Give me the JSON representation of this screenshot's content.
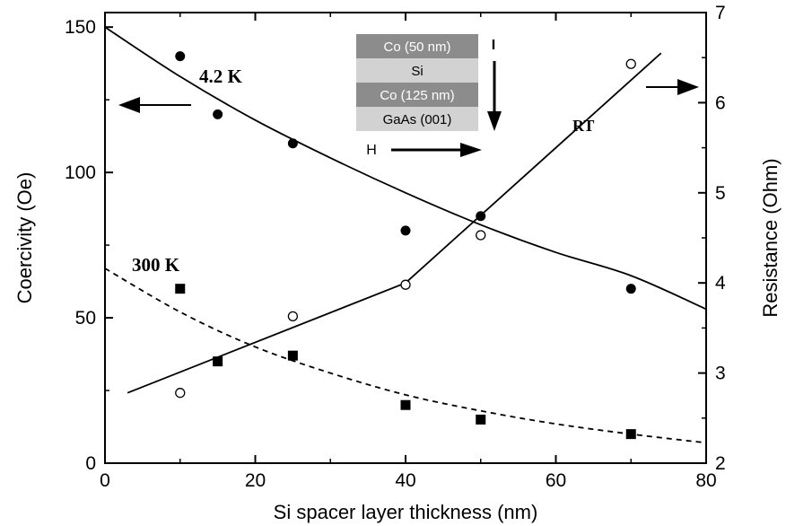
{
  "chart_data": {
    "type": "scatter",
    "xlabel": "Si spacer layer thickness (nm)",
    "ylabel_left": "Coercivity (Oe)",
    "ylabel_right": "Resistance (Ohm)",
    "xlim": [
      0,
      80
    ],
    "ylim_left": [
      0,
      155
    ],
    "ylim_right": [
      2,
      7
    ],
    "x_ticks": [
      0,
      20,
      40,
      60,
      80
    ],
    "y_left_ticks": [
      0,
      50,
      100,
      150
    ],
    "y_right_ticks": [
      2,
      3,
      4,
      5,
      6,
      7
    ],
    "grid": false,
    "series": [
      {
        "name": "4.2 K",
        "axis": "left",
        "marker": "filled-circle",
        "points": [
          [
            10,
            140
          ],
          [
            15,
            120
          ],
          [
            25,
            110
          ],
          [
            40,
            80
          ],
          [
            50,
            85
          ],
          [
            70,
            60
          ]
        ],
        "fit": "solid",
        "fit_curve": [
          [
            0,
            150
          ],
          [
            10,
            133
          ],
          [
            20,
            118
          ],
          [
            30,
            105
          ],
          [
            40,
            93
          ],
          [
            50,
            82
          ],
          [
            60,
            72.5
          ],
          [
            70,
            64.5
          ],
          [
            80,
            53
          ]
        ]
      },
      {
        "name": "300 K",
        "axis": "left",
        "marker": "filled-square",
        "points": [
          [
            10,
            60
          ],
          [
            15,
            35
          ],
          [
            25,
            37
          ],
          [
            40,
            20
          ],
          [
            50,
            15
          ],
          [
            70,
            10
          ]
        ],
        "fit": "dashed",
        "fit_curve": [
          [
            0,
            67
          ],
          [
            10,
            52
          ],
          [
            20,
            40
          ],
          [
            30,
            31
          ],
          [
            40,
            23.5
          ],
          [
            50,
            18
          ],
          [
            60,
            13.5
          ],
          [
            70,
            10
          ],
          [
            80,
            7
          ]
        ]
      },
      {
        "name": "RT",
        "axis": "right",
        "marker": "open-circle",
        "points": [
          [
            10,
            2.78
          ],
          [
            25,
            3.63
          ],
          [
            40,
            3.98
          ],
          [
            50,
            4.53
          ],
          [
            70,
            6.43
          ]
        ],
        "fit": "solid",
        "fit_curve": [
          [
            3,
            2.78
          ],
          [
            40,
            4.0
          ],
          [
            74,
            6.55
          ]
        ]
      }
    ],
    "annotations": {
      "label_42K": "4.2 K",
      "label_300K": "300 K",
      "label_RT": "RT"
    },
    "inset": {
      "layers": [
        {
          "name": "Co (50 nm)",
          "fill": "#8c8c8c"
        },
        {
          "name": "Si",
          "fill": "#d2d2d2"
        },
        {
          "name": "Co (125 nm)",
          "fill": "#8c8c8c"
        },
        {
          "name": "GaAs (001)",
          "fill": "#d2d2d2"
        }
      ],
      "current_label": "I",
      "field_label": "H"
    }
  }
}
